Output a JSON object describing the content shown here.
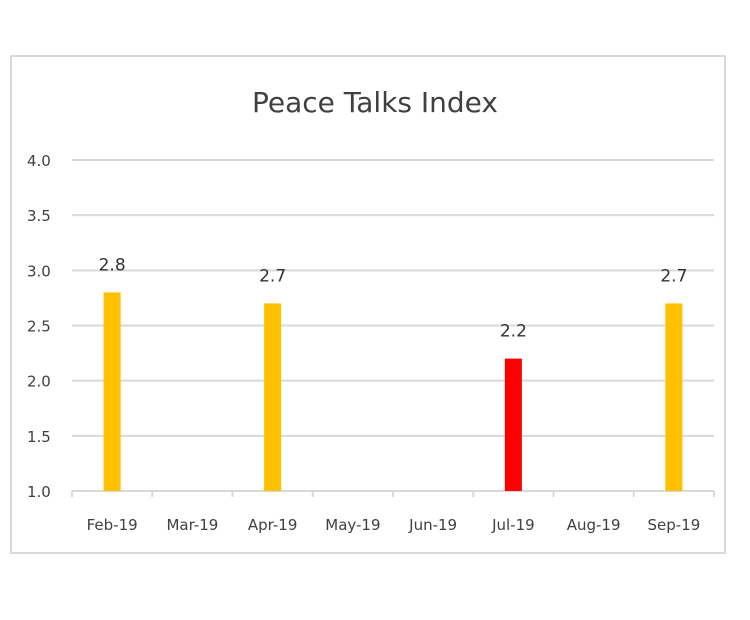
{
  "chart_data": {
    "type": "bar",
    "title": "Peace Talks Index",
    "xlabel": "",
    "ylabel": "",
    "categories": [
      "Feb-19",
      "Mar-19",
      "Apr-19",
      "May-19",
      "Jun-19",
      "Jul-19",
      "Aug-19",
      "Sep-19"
    ],
    "values": [
      2.8,
      null,
      2.7,
      null,
      null,
      2.2,
      null,
      2.7
    ],
    "data_labels": [
      "2.8",
      "",
      "2.7",
      "",
      "",
      "2.2",
      "",
      "2.7"
    ],
    "bar_colors": [
      "#FFC000",
      "#FFC000",
      "#FFC000",
      "#FFC000",
      "#FFC000",
      "#FF0000",
      "#FFC000",
      "#FFC000"
    ],
    "ylim": [
      1.0,
      4.0
    ],
    "yticks": [
      "1.0",
      "1.5",
      "2.0",
      "2.5",
      "3.0",
      "3.5",
      "4.0"
    ],
    "grid": true,
    "legend": "none"
  }
}
